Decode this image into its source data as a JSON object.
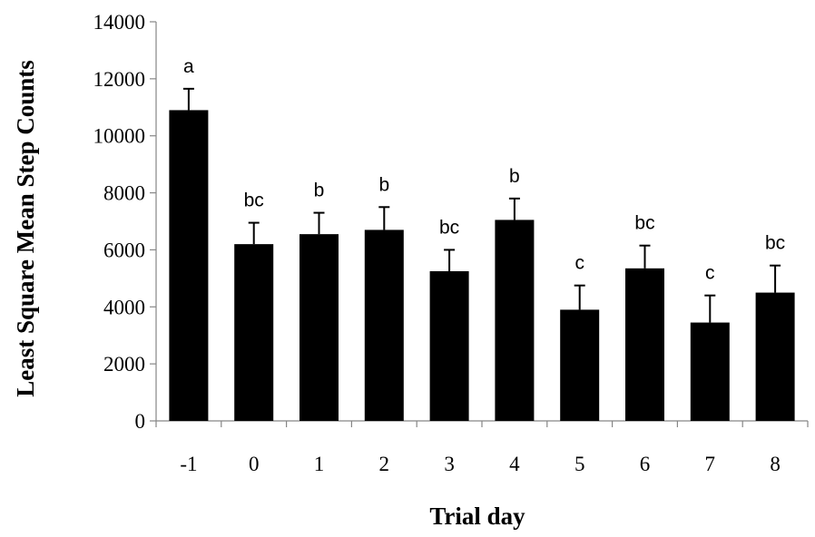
{
  "chart_data": {
    "type": "bar",
    "title": "",
    "xlabel": "Trial day",
    "ylabel": "Least Square Mean Step Counts",
    "categories": [
      "-1",
      "0",
      "1",
      "2",
      "3",
      "4",
      "5",
      "6",
      "7",
      "8"
    ],
    "series": [
      {
        "values": [
          10900,
          6200,
          6550,
          6700,
          5250,
          7050,
          3900,
          5350,
          3450,
          4500
        ],
        "errors": [
          750,
          750,
          750,
          800,
          750,
          750,
          850,
          800,
          950,
          950
        ],
        "labels": [
          "a",
          "bc",
          "b",
          "b",
          "bc",
          "b",
          "c",
          "bc",
          "c",
          "bc"
        ]
      }
    ],
    "ylim": [
      0,
      14000
    ],
    "yticks": [
      "0",
      "2000",
      "4000",
      "6000",
      "8000",
      "10000",
      "12000",
      "14000"
    ],
    "grid": false,
    "legend": "none",
    "bar_color": "#000000"
  }
}
